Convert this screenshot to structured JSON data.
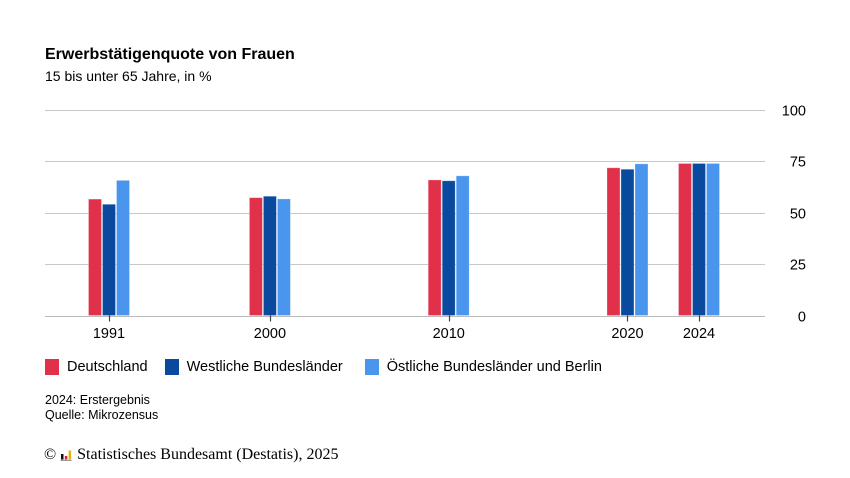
{
  "chart_data": {
    "type": "bar",
    "title": "Erwerbstätigenquote von Frauen",
    "subtitle": "15 bis unter 65 Jahre, in %",
    "xlabel": "",
    "ylabel": "",
    "categories": [
      "1991",
      "2000",
      "2010",
      "2020",
      "2024"
    ],
    "x_numeric": [
      1991,
      2000,
      2010,
      2020,
      2024
    ],
    "x_range": [
      1991,
      2024
    ],
    "ylim": [
      0,
      100
    ],
    "yticks": [
      0,
      25,
      50,
      75,
      100
    ],
    "y_axis_position": "right",
    "grid": true,
    "legend_position": "bottom-left",
    "series": [
      {
        "name": "Deutschland",
        "color": "#e0304a",
        "values": [
          56.5,
          57.2,
          65.8,
          71.7,
          73.8
        ]
      },
      {
        "name": "Westliche Bundesländer",
        "color": "#0a4a9e",
        "values": [
          54.0,
          57.9,
          65.4,
          71.0,
          73.8
        ]
      },
      {
        "name": "Östliche Bundesländer und Berlin",
        "color": "#4a95ee",
        "values": [
          65.6,
          56.6,
          67.8,
          73.6,
          73.8
        ]
      }
    ]
  },
  "notes": {
    "line1": "2024: Erstergebnis",
    "line2": "Quelle: Mikrozensus"
  },
  "footer": {
    "copyright_symbol": "©",
    "logo_icon": "destatis-logo",
    "text": "Statistisches Bundesamt (Destatis), 2025"
  }
}
